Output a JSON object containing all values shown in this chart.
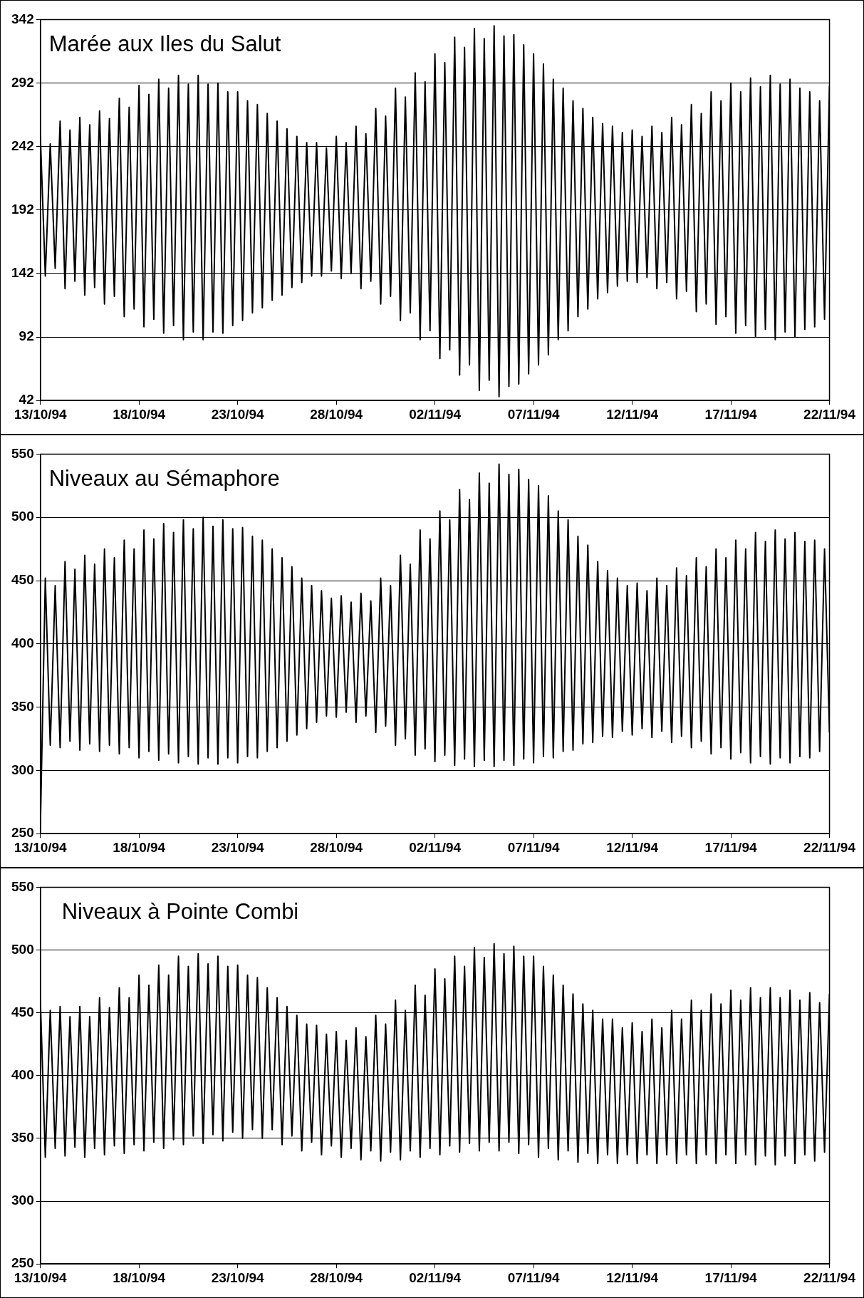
{
  "chart_data": [
    {
      "type": "line",
      "title": "Marée aux Iles du Salut",
      "grid": "y",
      "x": [
        "1994-10-13T00:00",
        "1994-10-13T06:00",
        "1994-10-13T12:00",
        "1994-10-13T18:00",
        "1994-10-14T00:00",
        "1994-10-14T06:00",
        "1994-10-14T12:00",
        "1994-10-14T18:00",
        "1994-10-15T00:00",
        "1994-10-15T06:00",
        "1994-10-15T12:00",
        "1994-10-15T18:00",
        "1994-10-16T00:00",
        "1994-10-16T06:00",
        "1994-10-16T12:00",
        "1994-10-16T18:00",
        "1994-10-17T00:00",
        "1994-10-17T06:00",
        "1994-10-17T12:00",
        "1994-10-17T18:00",
        "1994-10-18T00:00",
        "1994-10-18T06:00",
        "1994-10-18T12:00",
        "1994-10-18T18:00",
        "1994-10-19T00:00",
        "1994-10-19T06:00",
        "1994-10-19T12:00",
        "1994-10-19T18:00",
        "1994-10-20T00:00",
        "1994-10-20T06:00",
        "1994-10-20T12:00",
        "1994-10-20T18:00",
        "1994-10-21T00:00",
        "1994-10-21T06:00",
        "1994-10-21T12:00",
        "1994-10-21T18:00",
        "1994-10-22T00:00",
        "1994-10-22T06:00",
        "1994-10-22T12:00",
        "1994-10-22T18:00",
        "1994-10-23T00:00",
        "1994-10-23T06:00",
        "1994-10-23T12:00",
        "1994-10-23T18:00",
        "1994-10-24T00:00",
        "1994-10-24T06:00",
        "1994-10-24T12:00",
        "1994-10-24T18:00",
        "1994-10-25T00:00",
        "1994-10-25T06:00",
        "1994-10-25T12:00",
        "1994-10-25T18:00",
        "1994-10-26T00:00",
        "1994-10-26T06:00",
        "1994-10-26T12:00",
        "1994-10-26T18:00",
        "1994-10-27T00:00",
        "1994-10-27T06:00",
        "1994-10-27T12:00",
        "1994-10-27T18:00",
        "1994-10-28T00:00",
        "1994-10-28T06:00",
        "1994-10-28T12:00",
        "1994-10-28T18:00",
        "1994-10-29T00:00",
        "1994-10-29T06:00",
        "1994-10-29T12:00",
        "1994-10-29T18:00",
        "1994-10-30T00:00",
        "1994-10-30T06:00",
        "1994-10-30T12:00",
        "1994-10-30T18:00",
        "1994-10-31T00:00",
        "1994-10-31T06:00",
        "1994-10-31T12:00",
        "1994-10-31T18:00",
        "1994-11-01T00:00",
        "1994-11-01T06:00",
        "1994-11-01T12:00",
        "1994-11-01T18:00",
        "1994-11-02T00:00",
        "1994-11-02T06:00",
        "1994-11-02T12:00",
        "1994-11-02T18:00",
        "1994-11-03T00:00",
        "1994-11-03T06:00",
        "1994-11-03T12:00",
        "1994-11-03T18:00",
        "1994-11-04T00:00",
        "1994-11-04T06:00",
        "1994-11-04T12:00",
        "1994-11-04T18:00",
        "1994-11-05T00:00",
        "1994-11-05T06:00",
        "1994-11-05T12:00",
        "1994-11-05T18:00",
        "1994-11-06T00:00",
        "1994-11-06T06:00",
        "1994-11-06T12:00",
        "1994-11-06T18:00",
        "1994-11-07T00:00",
        "1994-11-07T06:00",
        "1994-11-07T12:00",
        "1994-11-07T18:00",
        "1994-11-08T00:00",
        "1994-11-08T06:00",
        "1994-11-08T12:00",
        "1994-11-08T18:00",
        "1994-11-09T00:00",
        "1994-11-09T06:00",
        "1994-11-09T12:00",
        "1994-11-09T18:00",
        "1994-11-10T00:00",
        "1994-11-10T06:00",
        "1994-11-10T12:00",
        "1994-11-10T18:00",
        "1994-11-11T00:00",
        "1994-11-11T06:00",
        "1994-11-11T12:00",
        "1994-11-11T18:00",
        "1994-11-12T00:00",
        "1994-11-12T06:00",
        "1994-11-12T12:00",
        "1994-11-12T18:00",
        "1994-11-13T00:00",
        "1994-11-13T06:00",
        "1994-11-13T12:00",
        "1994-11-13T18:00",
        "1994-11-14T00:00",
        "1994-11-14T06:00",
        "1994-11-14T12:00",
        "1994-11-14T18:00",
        "1994-11-15T00:00",
        "1994-11-15T06:00",
        "1994-11-15T12:00",
        "1994-11-15T18:00",
        "1994-11-16T00:00",
        "1994-11-16T06:00",
        "1994-11-16T12:00",
        "1994-11-16T18:00",
        "1994-11-17T00:00",
        "1994-11-17T06:00",
        "1994-11-17T12:00",
        "1994-11-17T18:00",
        "1994-11-18T00:00",
        "1994-11-18T06:00",
        "1994-11-18T12:00",
        "1994-11-18T18:00",
        "1994-11-19T00:00",
        "1994-11-19T06:00",
        "1994-11-19T12:00",
        "1994-11-19T18:00",
        "1994-11-20T00:00",
        "1994-11-20T06:00",
        "1994-11-20T12:00",
        "1994-11-20T18:00",
        "1994-11-21T00:00",
        "1994-11-21T06:00",
        "1994-11-21T12:00",
        "1994-11-21T18:00",
        "1994-11-22T00:00"
      ],
      "legend": false,
      "marker": "none",
      "line_style": "solid",
      "xlim": [
        "1994-10-13",
        "1994-11-22"
      ],
      "xticks": [
        {
          "value": "1994-10-13",
          "label": "13/10/94"
        },
        {
          "value": "1994-10-18",
          "label": "18/10/94"
        },
        {
          "value": "1994-10-23",
          "label": "23/10/94"
        },
        {
          "value": "1994-10-28",
          "label": "28/10/94"
        },
        {
          "value": "1994-11-02",
          "label": "02/11/94"
        },
        {
          "value": "1994-11-07",
          "label": "07/11/94"
        },
        {
          "value": "1994-11-12",
          "label": "12/11/94"
        },
        {
          "value": "1994-11-17",
          "label": "17/11/94"
        },
        {
          "value": "1994-11-22",
          "label": "22/11/94"
        }
      ],
      "ylim": [
        42,
        342
      ],
      "yticks": [
        42,
        92,
        142,
        192,
        242,
        292,
        342
      ],
      "series": [
        {
          "color": "#000000",
          "values": [
            250,
            140,
            244,
            146,
            262,
            130,
            255,
            136,
            265,
            125,
            259,
            131,
            270,
            118,
            264,
            124,
            280,
            108,
            273,
            114,
            290,
            100,
            283,
            106,
            295,
            95,
            288,
            101,
            298,
            90,
            291,
            96,
            298,
            90,
            291,
            96,
            292,
            95,
            285,
            101,
            285,
            105,
            278,
            111,
            275,
            115,
            268,
            121,
            262,
            125,
            256,
            131,
            250,
            135,
            245,
            140,
            245,
            140,
            241,
            144,
            250,
            138,
            245,
            142,
            258,
            130,
            252,
            136,
            272,
            118,
            266,
            124,
            288,
            105,
            281,
            111,
            300,
            90,
            293,
            97,
            315,
            75,
            308,
            82,
            328,
            62,
            320,
            70,
            335,
            50,
            327,
            58,
            337,
            45,
            329,
            53,
            330,
            55,
            322,
            63,
            315,
            70,
            307,
            78,
            295,
            90,
            288,
            97,
            278,
            108,
            272,
            114,
            265,
            122,
            260,
            127,
            258,
            132,
            253,
            136,
            255,
            135,
            250,
            139,
            258,
            130,
            253,
            135,
            265,
            122,
            259,
            128,
            275,
            112,
            268,
            118,
            285,
            102,
            278,
            108,
            292,
            95,
            285,
            101,
            296,
            92,
            289,
            98,
            298,
            90,
            291,
            96,
            295,
            92,
            288,
            98,
            285,
            100,
            278,
            106,
            290
          ]
        }
      ]
    },
    {
      "type": "line",
      "title": "Niveaux au Sémaphore",
      "grid": "y",
      "x": [
        "1994-10-13T00:00",
        "1994-10-13T06:00",
        "1994-10-13T12:00",
        "1994-10-13T18:00",
        "1994-10-14T00:00",
        "1994-10-14T06:00",
        "1994-10-14T12:00",
        "1994-10-14T18:00",
        "1994-10-15T00:00",
        "1994-10-15T06:00",
        "1994-10-15T12:00",
        "1994-10-15T18:00",
        "1994-10-16T00:00",
        "1994-10-16T06:00",
        "1994-10-16T12:00",
        "1994-10-16T18:00",
        "1994-10-17T00:00",
        "1994-10-17T06:00",
        "1994-10-17T12:00",
        "1994-10-17T18:00",
        "1994-10-18T00:00",
        "1994-10-18T06:00",
        "1994-10-18T12:00",
        "1994-10-18T18:00",
        "1994-10-19T00:00",
        "1994-10-19T06:00",
        "1994-10-19T12:00",
        "1994-10-19T18:00",
        "1994-10-20T00:00",
        "1994-10-20T06:00",
        "1994-10-20T12:00",
        "1994-10-20T18:00",
        "1994-10-21T00:00",
        "1994-10-21T06:00",
        "1994-10-21T12:00",
        "1994-10-21T18:00",
        "1994-10-22T00:00",
        "1994-10-22T06:00",
        "1994-10-22T12:00",
        "1994-10-22T18:00",
        "1994-10-23T00:00",
        "1994-10-23T06:00",
        "1994-10-23T12:00",
        "1994-10-23T18:00",
        "1994-10-24T00:00",
        "1994-10-24T06:00",
        "1994-10-24T12:00",
        "1994-10-24T18:00",
        "1994-10-25T00:00",
        "1994-10-25T06:00",
        "1994-10-25T12:00",
        "1994-10-25T18:00",
        "1994-10-26T00:00",
        "1994-10-26T06:00",
        "1994-10-26T12:00",
        "1994-10-26T18:00",
        "1994-10-27T00:00",
        "1994-10-27T06:00",
        "1994-10-27T12:00",
        "1994-10-27T18:00",
        "1994-10-28T00:00",
        "1994-10-28T06:00",
        "1994-10-28T12:00",
        "1994-10-28T18:00",
        "1994-10-29T00:00",
        "1994-10-29T06:00",
        "1994-10-29T12:00",
        "1994-10-29T18:00",
        "1994-10-30T00:00",
        "1994-10-30T06:00",
        "1994-10-30T12:00",
        "1994-10-30T18:00",
        "1994-10-31T00:00",
        "1994-10-31T06:00",
        "1994-10-31T12:00",
        "1994-10-31T18:00",
        "1994-11-01T00:00",
        "1994-11-01T06:00",
        "1994-11-01T12:00",
        "1994-11-01T18:00",
        "1994-11-02T00:00",
        "1994-11-02T06:00",
        "1994-11-02T12:00",
        "1994-11-02T18:00",
        "1994-11-03T00:00",
        "1994-11-03T06:00",
        "1994-11-03T12:00",
        "1994-11-03T18:00",
        "1994-11-04T00:00",
        "1994-11-04T06:00",
        "1994-11-04T12:00",
        "1994-11-04T18:00",
        "1994-11-05T00:00",
        "1994-11-05T06:00",
        "1994-11-05T12:00",
        "1994-11-05T18:00",
        "1994-11-06T00:00",
        "1994-11-06T06:00",
        "1994-11-06T12:00",
        "1994-11-06T18:00",
        "1994-11-07T00:00",
        "1994-11-07T06:00",
        "1994-11-07T12:00",
        "1994-11-07T18:00",
        "1994-11-08T00:00",
        "1994-11-08T06:00",
        "1994-11-08T12:00",
        "1994-11-08T18:00",
        "1994-11-09T00:00",
        "1994-11-09T06:00",
        "1994-11-09T12:00",
        "1994-11-09T18:00",
        "1994-11-10T00:00",
        "1994-11-10T06:00",
        "1994-11-10T12:00",
        "1994-11-10T18:00",
        "1994-11-11T00:00",
        "1994-11-11T06:00",
        "1994-11-11T12:00",
        "1994-11-11T18:00",
        "1994-11-12T00:00",
        "1994-11-12T06:00",
        "1994-11-12T12:00",
        "1994-11-12T18:00",
        "1994-11-13T00:00",
        "1994-11-13T06:00",
        "1994-11-13T12:00",
        "1994-11-13T18:00",
        "1994-11-14T00:00",
        "1994-11-14T06:00",
        "1994-11-14T12:00",
        "1994-11-14T18:00",
        "1994-11-15T00:00",
        "1994-11-15T06:00",
        "1994-11-15T12:00",
        "1994-11-15T18:00",
        "1994-11-16T00:00",
        "1994-11-16T06:00",
        "1994-11-16T12:00",
        "1994-11-16T18:00",
        "1994-11-17T00:00",
        "1994-11-17T06:00",
        "1994-11-17T12:00",
        "1994-11-17T18:00",
        "1994-11-18T00:00",
        "1994-11-18T06:00",
        "1994-11-18T12:00",
        "1994-11-18T18:00",
        "1994-11-19T00:00",
        "1994-11-19T06:00",
        "1994-11-19T12:00",
        "1994-11-19T18:00",
        "1994-11-20T00:00",
        "1994-11-20T06:00",
        "1994-11-20T12:00",
        "1994-11-20T18:00",
        "1994-11-21T00:00",
        "1994-11-21T06:00",
        "1994-11-21T12:00",
        "1994-11-21T18:00",
        "1994-11-22T00:00"
      ],
      "legend": false,
      "marker": "none",
      "line_style": "solid",
      "xlim": [
        "1994-10-13",
        "1994-11-22"
      ],
      "xticks": [
        {
          "value": "1994-10-13",
          "label": "13/10/94"
        },
        {
          "value": "1994-10-18",
          "label": "18/10/94"
        },
        {
          "value": "1994-10-23",
          "label": "23/10/94"
        },
        {
          "value": "1994-10-28",
          "label": "28/10/94"
        },
        {
          "value": "1994-11-02",
          "label": "02/11/94"
        },
        {
          "value": "1994-11-07",
          "label": "07/11/94"
        },
        {
          "value": "1994-11-12",
          "label": "12/11/94"
        },
        {
          "value": "1994-11-17",
          "label": "17/11/94"
        },
        {
          "value": "1994-11-22",
          "label": "22/11/94"
        }
      ],
      "ylim": [
        250,
        550
      ],
      "yticks": [
        250,
        300,
        350,
        400,
        450,
        500,
        550
      ],
      "series": [
        {
          "color": "#000000",
          "values": [
            255,
            452,
            320,
            446,
            318,
            465,
            323,
            459,
            316,
            470,
            321,
            463,
            315,
            475,
            320,
            468,
            313,
            482,
            318,
            475,
            310,
            490,
            315,
            483,
            308,
            495,
            313,
            488,
            306,
            498,
            311,
            491,
            305,
            500,
            310,
            493,
            305,
            498,
            310,
            491,
            306,
            492,
            311,
            485,
            310,
            482,
            315,
            475,
            318,
            468,
            323,
            461,
            328,
            452,
            333,
            446,
            338,
            442,
            343,
            436,
            342,
            438,
            346,
            433,
            338,
            440,
            343,
            434,
            330,
            452,
            335,
            446,
            320,
            470,
            325,
            463,
            312,
            490,
            317,
            483,
            307,
            505,
            312,
            498,
            304,
            522,
            309,
            514,
            303,
            535,
            308,
            527,
            303,
            542,
            308,
            534,
            304,
            538,
            309,
            530,
            306,
            525,
            311,
            517,
            310,
            505,
            315,
            498,
            316,
            485,
            321,
            478,
            322,
            465,
            327,
            458,
            326,
            452,
            331,
            446,
            328,
            448,
            333,
            442,
            326,
            452,
            331,
            446,
            322,
            460,
            327,
            454,
            318,
            468,
            323,
            461,
            313,
            475,
            318,
            468,
            309,
            482,
            314,
            475,
            306,
            488,
            311,
            481,
            305,
            490,
            310,
            483,
            306,
            488,
            311,
            481,
            310,
            482,
            315,
            475,
            330
          ]
        }
      ]
    },
    {
      "type": "line",
      "title": "Niveaux à Pointe Combi",
      "grid": "y",
      "x": [
        "1994-10-13T00:00",
        "1994-10-13T06:00",
        "1994-10-13T12:00",
        "1994-10-13T18:00",
        "1994-10-14T00:00",
        "1994-10-14T06:00",
        "1994-10-14T12:00",
        "1994-10-14T18:00",
        "1994-10-15T00:00",
        "1994-10-15T06:00",
        "1994-10-15T12:00",
        "1994-10-15T18:00",
        "1994-10-16T00:00",
        "1994-10-16T06:00",
        "1994-10-16T12:00",
        "1994-10-16T18:00",
        "1994-10-17T00:00",
        "1994-10-17T06:00",
        "1994-10-17T12:00",
        "1994-10-17T18:00",
        "1994-10-18T00:00",
        "1994-10-18T06:00",
        "1994-10-18T12:00",
        "1994-10-18T18:00",
        "1994-10-19T00:00",
        "1994-10-19T06:00",
        "1994-10-19T12:00",
        "1994-10-19T18:00",
        "1994-10-20T00:00",
        "1994-10-20T06:00",
        "1994-10-20T12:00",
        "1994-10-20T18:00",
        "1994-10-21T00:00",
        "1994-10-21T06:00",
        "1994-10-21T12:00",
        "1994-10-21T18:00",
        "1994-10-22T00:00",
        "1994-10-22T06:00",
        "1994-10-22T12:00",
        "1994-10-22T18:00",
        "1994-10-23T00:00",
        "1994-10-23T06:00",
        "1994-10-23T12:00",
        "1994-10-23T18:00",
        "1994-10-24T00:00",
        "1994-10-24T06:00",
        "1994-10-24T12:00",
        "1994-10-24T18:00",
        "1994-10-25T00:00",
        "1994-10-25T06:00",
        "1994-10-25T12:00",
        "1994-10-25T18:00",
        "1994-10-26T00:00",
        "1994-10-26T06:00",
        "1994-10-26T12:00",
        "1994-10-26T18:00",
        "1994-10-27T00:00",
        "1994-10-27T06:00",
        "1994-10-27T12:00",
        "1994-10-27T18:00",
        "1994-10-28T00:00",
        "1994-10-28T06:00",
        "1994-10-28T12:00",
        "1994-10-28T18:00",
        "1994-10-29T00:00",
        "1994-10-29T06:00",
        "1994-10-29T12:00",
        "1994-10-29T18:00",
        "1994-10-30T00:00",
        "1994-10-30T06:00",
        "1994-10-30T12:00",
        "1994-10-30T18:00",
        "1994-10-31T00:00",
        "1994-10-31T06:00",
        "1994-10-31T12:00",
        "1994-10-31T18:00",
        "1994-11-01T00:00",
        "1994-11-01T06:00",
        "1994-11-01T12:00",
        "1994-11-01T18:00",
        "1994-11-02T00:00",
        "1994-11-02T06:00",
        "1994-11-02T12:00",
        "1994-11-02T18:00",
        "1994-11-03T00:00",
        "1994-11-03T06:00",
        "1994-11-03T12:00",
        "1994-11-03T18:00",
        "1994-11-04T00:00",
        "1994-11-04T06:00",
        "1994-11-04T12:00",
        "1994-11-04T18:00",
        "1994-11-05T00:00",
        "1994-11-05T06:00",
        "1994-11-05T12:00",
        "1994-11-05T18:00",
        "1994-11-06T00:00",
        "1994-11-06T06:00",
        "1994-11-06T12:00",
        "1994-11-06T18:00",
        "1994-11-07T00:00",
        "1994-11-07T06:00",
        "1994-11-07T12:00",
        "1994-11-07T18:00",
        "1994-11-08T00:00",
        "1994-11-08T06:00",
        "1994-11-08T12:00",
        "1994-11-08T18:00",
        "1994-11-09T00:00",
        "1994-11-09T06:00",
        "1994-11-09T12:00",
        "1994-11-09T18:00",
        "1994-11-10T00:00",
        "1994-11-10T06:00",
        "1994-11-10T12:00",
        "1994-11-10T18:00",
        "1994-11-11T00:00",
        "1994-11-11T06:00",
        "1994-11-11T12:00",
        "1994-11-11T18:00",
        "1994-11-12T00:00",
        "1994-11-12T06:00",
        "1994-11-12T12:00",
        "1994-11-12T18:00",
        "1994-11-13T00:00",
        "1994-11-13T06:00",
        "1994-11-13T12:00",
        "1994-11-13T18:00",
        "1994-11-14T00:00",
        "1994-11-14T06:00",
        "1994-11-14T12:00",
        "1994-11-14T18:00",
        "1994-11-15T00:00",
        "1994-11-15T06:00",
        "1994-11-15T12:00",
        "1994-11-15T18:00",
        "1994-11-16T00:00",
        "1994-11-16T06:00",
        "1994-11-16T12:00",
        "1994-11-16T18:00",
        "1994-11-17T00:00",
        "1994-11-17T06:00",
        "1994-11-17T12:00",
        "1994-11-17T18:00",
        "1994-11-18T00:00",
        "1994-11-18T06:00",
        "1994-11-18T12:00",
        "1994-11-18T18:00",
        "1994-11-19T00:00",
        "1994-11-19T06:00",
        "1994-11-19T12:00",
        "1994-11-19T18:00",
        "1994-11-20T00:00",
        "1994-11-20T06:00",
        "1994-11-20T12:00",
        "1994-11-20T18:00",
        "1994-11-21T00:00",
        "1994-11-21T06:00",
        "1994-11-21T12:00",
        "1994-11-21T18:00",
        "1994-11-22T00:00"
      ],
      "legend": false,
      "marker": "none",
      "line_style": "solid",
      "xlim": [
        "1994-10-13",
        "1994-11-22"
      ],
      "xticks": [
        {
          "value": "1994-10-13",
          "label": "13/10/94"
        },
        {
          "value": "1994-10-18",
          "label": "18/10/94"
        },
        {
          "value": "1994-10-23",
          "label": "23/10/94"
        },
        {
          "value": "1994-10-28",
          "label": "28/10/94"
        },
        {
          "value": "1994-11-02",
          "label": "02/11/94"
        },
        {
          "value": "1994-11-07",
          "label": "07/11/94"
        },
        {
          "value": "1994-11-12",
          "label": "12/11/94"
        },
        {
          "value": "1994-11-17",
          "label": "17/11/94"
        },
        {
          "value": "1994-11-22",
          "label": "22/11/94"
        }
      ],
      "ylim": [
        250,
        550
      ],
      "yticks": [
        250,
        300,
        350,
        400,
        450,
        500,
        550
      ],
      "series": [
        {
          "color": "#000000",
          "values": [
            460,
            335,
            452,
            342,
            455,
            336,
            447,
            343,
            455,
            335,
            447,
            342,
            462,
            337,
            454,
            344,
            470,
            338,
            462,
            345,
            480,
            340,
            472,
            347,
            488,
            342,
            480,
            349,
            495,
            345,
            487,
            352,
            497,
            346,
            489,
            353,
            495,
            348,
            487,
            355,
            488,
            350,
            480,
            357,
            478,
            350,
            470,
            357,
            462,
            345,
            455,
            352,
            448,
            340,
            441,
            347,
            440,
            337,
            433,
            344,
            435,
            335,
            428,
            342,
            438,
            333,
            431,
            340,
            448,
            332,
            441,
            339,
            460,
            333,
            452,
            340,
            472,
            335,
            464,
            342,
            485,
            337,
            477,
            344,
            495,
            339,
            487,
            346,
            502,
            340,
            494,
            347,
            505,
            340,
            497,
            347,
            503,
            338,
            495,
            345,
            495,
            335,
            487,
            342,
            480,
            333,
            472,
            340,
            465,
            331,
            457,
            338,
            452,
            330,
            445,
            337,
            445,
            330,
            438,
            337,
            442,
            330,
            435,
            337,
            445,
            330,
            438,
            337,
            452,
            330,
            445,
            337,
            460,
            330,
            452,
            337,
            465,
            330,
            457,
            337,
            468,
            330,
            460,
            337,
            470,
            329,
            462,
            336,
            470,
            329,
            462,
            336,
            468,
            330,
            460,
            337,
            466,
            332,
            458,
            339,
            465
          ]
        }
      ]
    }
  ]
}
